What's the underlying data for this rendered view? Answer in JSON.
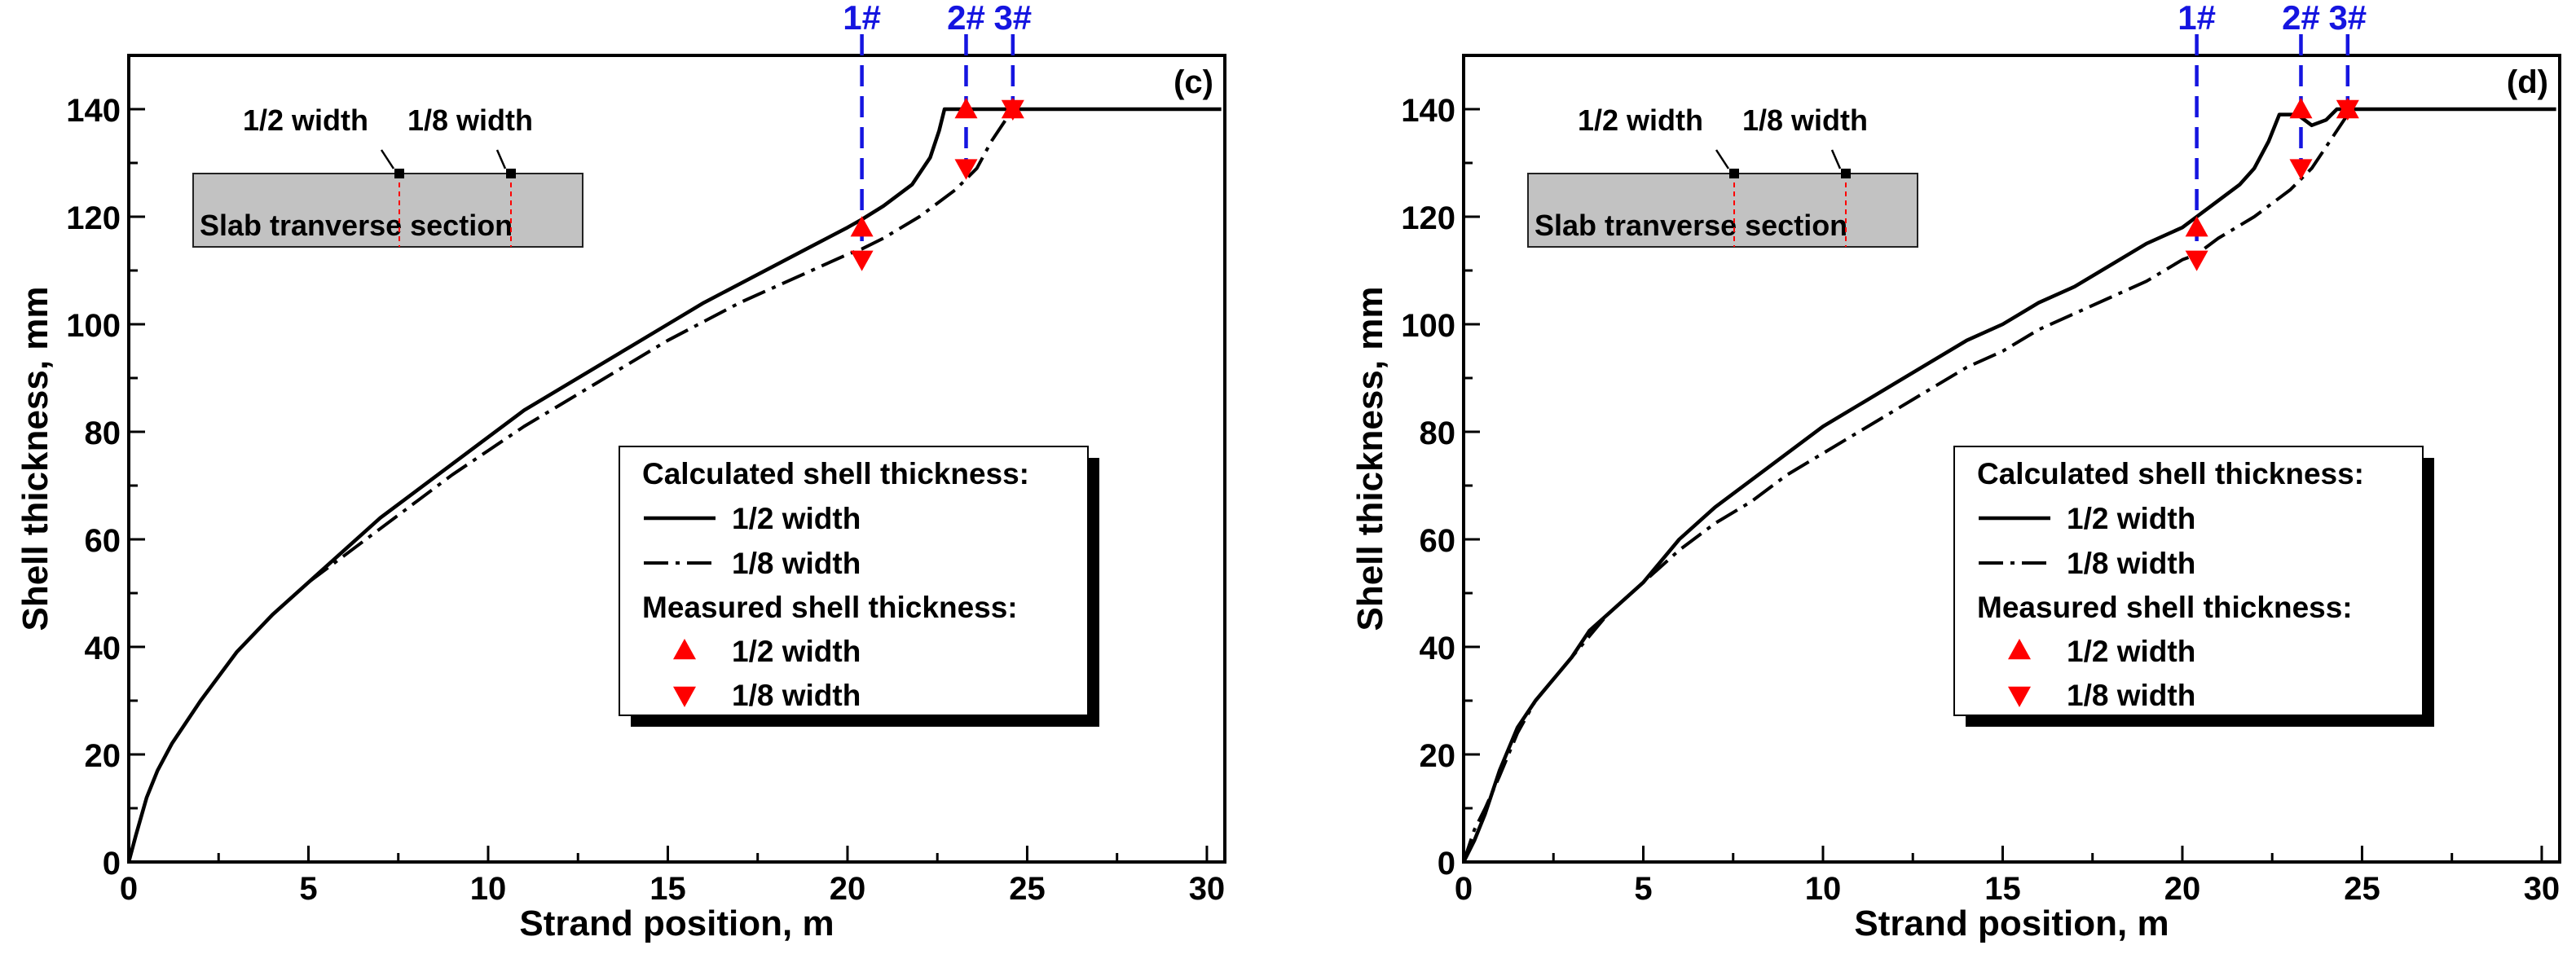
{
  "chart_data": [
    {
      "type": "line",
      "panel_label": "(c)",
      "xlabel": "Strand position, m",
      "ylabel": "Shell thickness, mm",
      "xlim": [
        0,
        30.5
      ],
      "ylim": [
        0,
        150
      ],
      "xticks": [
        "0",
        "5",
        "10",
        "15",
        "20",
        "25",
        "30"
      ],
      "yticks": [
        "0",
        "20",
        "40",
        "60",
        "80",
        "100",
        "120",
        "140"
      ],
      "xtick_values": [
        0,
        5,
        10,
        15,
        20,
        25,
        30
      ],
      "ytick_values": [
        0,
        20,
        40,
        60,
        80,
        100,
        120,
        140
      ],
      "inset": {
        "section_label": "Slab tranverse section",
        "marker_half": "1/2 width",
        "marker_eighth": "1/8 width"
      },
      "legend": {
        "calc_title": "Calculated shell thickness:",
        "calc_half": "1/2 width",
        "calc_eighth": "1/8 width",
        "meas_title": "Measured shell thickness:",
        "meas_half": "1/2 width",
        "meas_eighth": "1/8 width"
      },
      "measurement_points": [
        {
          "label": "1#",
          "x": 20.4
        },
        {
          "label": "2#",
          "x": 23.3
        },
        {
          "label": "3#",
          "x": 24.6
        }
      ],
      "series": [
        {
          "name": "Calculated 1/2 width",
          "style": "solid",
          "points": [
            [
              0,
              0
            ],
            [
              0.2,
              5
            ],
            [
              0.5,
              12
            ],
            [
              0.8,
              17
            ],
            [
              1.2,
              22
            ],
            [
              2,
              30
            ],
            [
              3,
              39
            ],
            [
              4,
              46
            ],
            [
              5,
              52
            ],
            [
              6,
              58
            ],
            [
              7,
              64
            ],
            [
              8,
              69
            ],
            [
              9,
              74
            ],
            [
              10,
              79
            ],
            [
              11,
              84
            ],
            [
              12,
              88
            ],
            [
              13,
              92
            ],
            [
              14,
              96
            ],
            [
              15,
              100
            ],
            [
              16,
              104
            ],
            [
              17,
              107.5
            ],
            [
              18,
              111
            ],
            [
              19,
              114.5
            ],
            [
              20,
              118
            ],
            [
              20.4,
              119.5
            ],
            [
              21,
              122
            ],
            [
              21.8,
              126
            ],
            [
              22.3,
              131
            ],
            [
              22.55,
              136
            ],
            [
              22.7,
              140
            ],
            [
              30.4,
              140
            ]
          ]
        },
        {
          "name": "Calculated 1/8 width",
          "style": "dashdot",
          "points": [
            [
              5,
              52
            ],
            [
              6,
              57
            ],
            [
              7,
              62
            ],
            [
              8,
              67
            ],
            [
              9,
              72
            ],
            [
              10,
              76.5
            ],
            [
              11,
              81
            ],
            [
              12,
              85
            ],
            [
              13,
              89
            ],
            [
              14,
              93
            ],
            [
              15,
              97
            ],
            [
              16,
              100.5
            ],
            [
              17,
              104
            ],
            [
              18,
              107
            ],
            [
              19,
              110
            ],
            [
              20,
              113
            ],
            [
              20.4,
              114
            ],
            [
              21,
              116
            ],
            [
              22,
              120
            ],
            [
              23,
              125
            ],
            [
              23.6,
              129
            ],
            [
              24,
              134
            ],
            [
              24.4,
              138
            ],
            [
              24.7,
              140
            ],
            [
              25.2,
              140
            ]
          ]
        },
        {
          "name": "Measured 1/2 width",
          "marker": "triangle-up",
          "color": "#ff0000",
          "points": [
            [
              20.4,
              118
            ],
            [
              23.3,
              140
            ],
            [
              24.6,
              140
            ]
          ]
        },
        {
          "name": "Measured 1/8 width",
          "marker": "triangle-down",
          "color": "#ff0000",
          "points": [
            [
              20.4,
              112
            ],
            [
              23.3,
              129
            ],
            [
              24.6,
              140
            ]
          ]
        }
      ]
    },
    {
      "type": "line",
      "panel_label": "(d)",
      "xlabel": "Strand position, m",
      "ylabel": "Shell thickness, mm",
      "xlim": [
        0,
        30.5
      ],
      "ylim": [
        0,
        150
      ],
      "xticks": [
        "0",
        "5",
        "10",
        "15",
        "20",
        "25",
        "30"
      ],
      "yticks": [
        "0",
        "20",
        "40",
        "60",
        "80",
        "100",
        "120",
        "140"
      ],
      "xtick_values": [
        0,
        5,
        10,
        15,
        20,
        25,
        30
      ],
      "ytick_values": [
        0,
        20,
        40,
        60,
        80,
        100,
        120,
        140
      ],
      "inset": {
        "section_label": "Slab tranverse section",
        "marker_half": "1/2 width",
        "marker_eighth": "1/8 width"
      },
      "legend": {
        "calc_title": "Calculated shell thickness:",
        "calc_half": "1/2 width",
        "calc_eighth": "1/8 width",
        "meas_title": "Measured shell thickness:",
        "meas_half": "1/2 width",
        "meas_eighth": "1/8 width"
      },
      "measurement_points": [
        {
          "label": "1#",
          "x": 20.4
        },
        {
          "label": "2#",
          "x": 23.3
        },
        {
          "label": "3#",
          "x": 24.6
        }
      ],
      "series": [
        {
          "name": "Calculated 1/2 width",
          "style": "solid",
          "points": [
            [
              0,
              0
            ],
            [
              0.3,
              4
            ],
            [
              0.6,
              9
            ],
            [
              1,
              17
            ],
            [
              1.5,
              25
            ],
            [
              2,
              30
            ],
            [
              3,
              38
            ],
            [
              3.5,
              43
            ],
            [
              4,
              46
            ],
            [
              5,
              52
            ],
            [
              6,
              60
            ],
            [
              7,
              66
            ],
            [
              8,
              71
            ],
            [
              9,
              76
            ],
            [
              10,
              81
            ],
            [
              11,
              85
            ],
            [
              12,
              89
            ],
            [
              13,
              93
            ],
            [
              14,
              97
            ],
            [
              15,
              100
            ],
            [
              16,
              104
            ],
            [
              17,
              107
            ],
            [
              18,
              111
            ],
            [
              19,
              115
            ],
            [
              20,
              118
            ],
            [
              20.4,
              120
            ],
            [
              21,
              123
            ],
            [
              21.6,
              126
            ],
            [
              22,
              129
            ],
            [
              22.4,
              134
            ],
            [
              22.7,
              139
            ],
            [
              23.2,
              139
            ],
            [
              23.6,
              137
            ],
            [
              24,
              138
            ],
            [
              24.3,
              140
            ],
            [
              30.4,
              140
            ]
          ]
        },
        {
          "name": "Calculated 1/8 width",
          "style": "dashdot",
          "points": [
            [
              0,
              0
            ],
            [
              0.3,
              6
            ],
            [
              0.6,
              10
            ],
            [
              1,
              16
            ],
            [
              1.5,
              24
            ],
            [
              2,
              30
            ],
            [
              3,
              38
            ],
            [
              4,
              46
            ],
            [
              5,
              52
            ],
            [
              6,
              58
            ],
            [
              7,
              63
            ],
            [
              8,
              67
            ],
            [
              9,
              72
            ],
            [
              10,
              76
            ],
            [
              11,
              80
            ],
            [
              12,
              84
            ],
            [
              13,
              88
            ],
            [
              14,
              92
            ],
            [
              15,
              95
            ],
            [
              16,
              99
            ],
            [
              17,
              102
            ],
            [
              18,
              105
            ],
            [
              19,
              108
            ],
            [
              20,
              112
            ],
            [
              20.4,
              113
            ],
            [
              21,
              116
            ],
            [
              22,
              120
            ],
            [
              23,
              125
            ],
            [
              23.6,
              129
            ],
            [
              24,
              133
            ],
            [
              24.4,
              137
            ],
            [
              24.7,
              140
            ],
            [
              25.2,
              140
            ]
          ]
        },
        {
          "name": "Measured 1/2 width",
          "marker": "triangle-up",
          "color": "#ff0000",
          "points": [
            [
              20.4,
              118
            ],
            [
              23.3,
              140
            ],
            [
              24.6,
              140
            ]
          ]
        },
        {
          "name": "Measured 1/8 width",
          "marker": "triangle-down",
          "color": "#ff0000",
          "points": [
            [
              20.4,
              112
            ],
            [
              23.3,
              129
            ],
            [
              24.6,
              140
            ]
          ]
        }
      ]
    }
  ]
}
